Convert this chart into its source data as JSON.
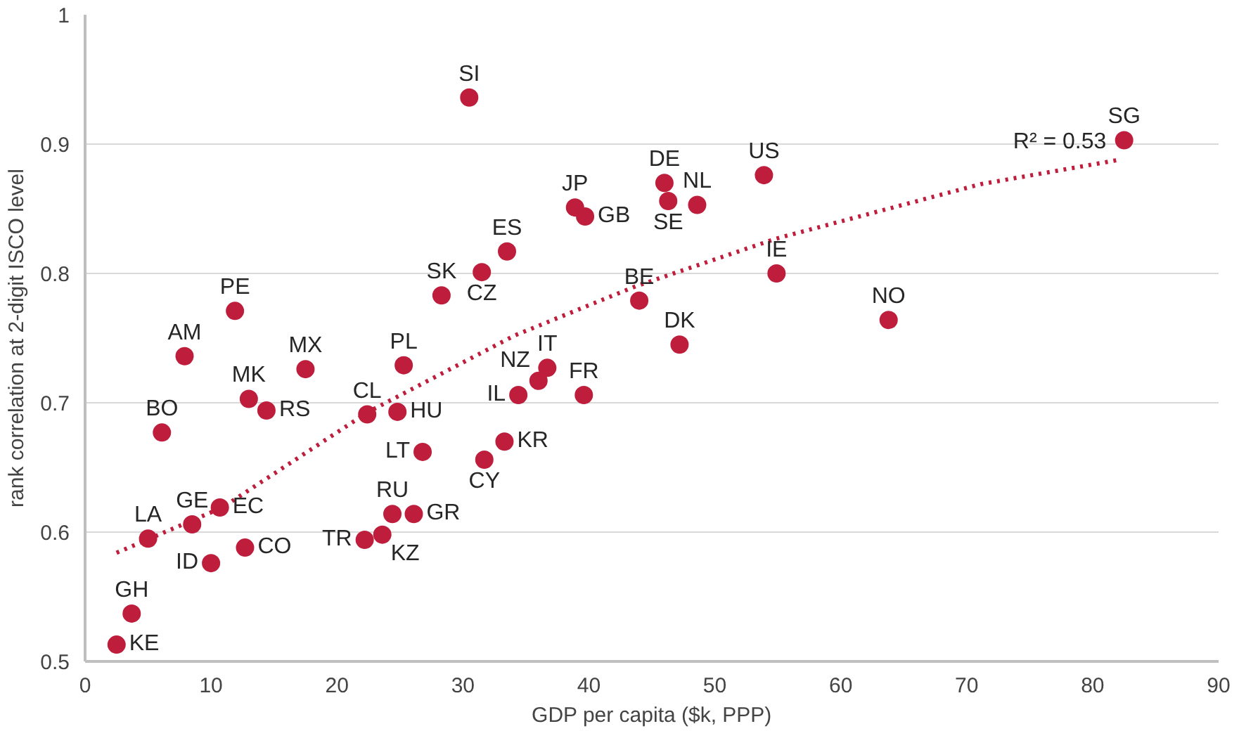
{
  "chart_data": {
    "type": "scatter",
    "xlabel": "GDP per capita ($k, PPP)",
    "ylabel": "rank correlation at 2-digit ISCO level",
    "xlim": [
      0,
      90
    ],
    "xticks": [
      0,
      10,
      20,
      30,
      40,
      50,
      60,
      70,
      80,
      90
    ],
    "ylim": [
      0.5,
      1
    ],
    "yticks": [
      0.5,
      0.6,
      0.7,
      0.8,
      0.9,
      1
    ],
    "grid": "y",
    "marker": "circle",
    "series": [
      {
        "name": "KE",
        "color": "#be1e3c",
        "x": [
          2.5
        ],
        "values": [
          0.513
        ]
      },
      {
        "name": "GH",
        "color": "#be1e3c",
        "x": [
          3.7
        ],
        "values": [
          0.537
        ]
      },
      {
        "name": "LA",
        "color": "#be1e3c",
        "x": [
          5.0
        ],
        "values": [
          0.595
        ]
      },
      {
        "name": "BO",
        "color": "#be1e3c",
        "x": [
          6.1
        ],
        "values": [
          0.677
        ]
      },
      {
        "name": "AM",
        "color": "#be1e3c",
        "x": [
          7.9
        ],
        "values": [
          0.736
        ]
      },
      {
        "name": "GE",
        "color": "#be1e3c",
        "x": [
          8.5
        ],
        "values": [
          0.606
        ]
      },
      {
        "name": "ID",
        "color": "#be1e3c",
        "x": [
          10.0
        ],
        "values": [
          0.576
        ]
      },
      {
        "name": "EC",
        "color": "#be1e3c",
        "x": [
          10.7
        ],
        "values": [
          0.619
        ]
      },
      {
        "name": "PE",
        "color": "#be1e3c",
        "x": [
          11.9
        ],
        "values": [
          0.771
        ]
      },
      {
        "name": "CO",
        "color": "#be1e3c",
        "x": [
          12.7
        ],
        "values": [
          0.588
        ]
      },
      {
        "name": "MK",
        "color": "#be1e3c",
        "x": [
          13.0
        ],
        "values": [
          0.703
        ]
      },
      {
        "name": "RS",
        "color": "#be1e3c",
        "x": [
          14.4
        ],
        "values": [
          0.694
        ]
      },
      {
        "name": "MX",
        "color": "#be1e3c",
        "x": [
          17.5
        ],
        "values": [
          0.726
        ]
      },
      {
        "name": "TR",
        "color": "#be1e3c",
        "x": [
          22.2
        ],
        "values": [
          0.594
        ]
      },
      {
        "name": "CL",
        "color": "#be1e3c",
        "x": [
          22.4
        ],
        "values": [
          0.691
        ]
      },
      {
        "name": "KZ",
        "color": "#be1e3c",
        "x": [
          23.6
        ],
        "values": [
          0.598
        ]
      },
      {
        "name": "RU",
        "color": "#be1e3c",
        "x": [
          24.4
        ],
        "values": [
          0.614
        ]
      },
      {
        "name": "HU",
        "color": "#be1e3c",
        "x": [
          24.8
        ],
        "values": [
          0.693
        ]
      },
      {
        "name": "PL",
        "color": "#be1e3c",
        "x": [
          25.3
        ],
        "values": [
          0.729
        ]
      },
      {
        "name": "GR",
        "color": "#be1e3c",
        "x": [
          26.1
        ],
        "values": [
          0.614
        ]
      },
      {
        "name": "LT",
        "color": "#be1e3c",
        "x": [
          26.8
        ],
        "values": [
          0.662
        ]
      },
      {
        "name": "SK",
        "color": "#be1e3c",
        "x": [
          28.3
        ],
        "values": [
          0.783
        ]
      },
      {
        "name": "SI",
        "color": "#be1e3c",
        "x": [
          30.5
        ],
        "values": [
          0.936
        ]
      },
      {
        "name": "CZ",
        "color": "#be1e3c",
        "x": [
          31.5
        ],
        "values": [
          0.801
        ]
      },
      {
        "name": "CY",
        "color": "#be1e3c",
        "x": [
          31.7
        ],
        "values": [
          0.656
        ]
      },
      {
        "name": "KR",
        "color": "#be1e3c",
        "x": [
          33.3
        ],
        "values": [
          0.67
        ]
      },
      {
        "name": "ES",
        "color": "#be1e3c",
        "x": [
          33.5
        ],
        "values": [
          0.817
        ]
      },
      {
        "name": "IL",
        "color": "#be1e3c",
        "x": [
          34.4
        ],
        "values": [
          0.706
        ]
      },
      {
        "name": "NZ",
        "color": "#be1e3c",
        "x": [
          36.0
        ],
        "values": [
          0.717
        ]
      },
      {
        "name": "IT",
        "color": "#be1e3c",
        "x": [
          36.7
        ],
        "values": [
          0.727
        ]
      },
      {
        "name": "JP",
        "color": "#be1e3c",
        "x": [
          38.9
        ],
        "values": [
          0.851
        ]
      },
      {
        "name": "FR",
        "color": "#be1e3c",
        "x": [
          39.6
        ],
        "values": [
          0.706
        ]
      },
      {
        "name": "GB",
        "color": "#be1e3c",
        "x": [
          39.7
        ],
        "values": [
          0.844
        ]
      },
      {
        "name": "BE",
        "color": "#be1e3c",
        "x": [
          44.0
        ],
        "values": [
          0.779
        ]
      },
      {
        "name": "DE",
        "color": "#be1e3c",
        "x": [
          46.0
        ],
        "values": [
          0.87
        ]
      },
      {
        "name": "SE",
        "color": "#be1e3c",
        "x": [
          46.3
        ],
        "values": [
          0.856
        ]
      },
      {
        "name": "DK",
        "color": "#be1e3c",
        "x": [
          47.2
        ],
        "values": [
          0.745
        ]
      },
      {
        "name": "NL",
        "color": "#be1e3c",
        "x": [
          48.6
        ],
        "values": [
          0.853
        ]
      },
      {
        "name": "US",
        "color": "#be1e3c",
        "x": [
          53.9
        ],
        "values": [
          0.876
        ]
      },
      {
        "name": "IE",
        "color": "#be1e3c",
        "x": [
          54.9
        ],
        "values": [
          0.8
        ]
      },
      {
        "name": "NO",
        "color": "#be1e3c",
        "x": [
          63.8
        ],
        "values": [
          0.764
        ]
      },
      {
        "name": "SG",
        "color": "#be1e3c",
        "x": [
          82.5
        ],
        "values": [
          0.903
        ]
      },
      {
        "type": "line",
        "line_style": "dotted",
        "marker": "none",
        "color": "#be1e3c",
        "x": [
          2.5,
          10.9,
          22.5,
          34.1,
          43.7,
          54.9,
          71.1,
          82.2
        ],
        "values": [
          0.584,
          0.619,
          0.693,
          0.752,
          0.79,
          0.827,
          0.869,
          0.888
        ]
      }
    ],
    "annotations": [
      "R² = 0.53"
    ]
  }
}
